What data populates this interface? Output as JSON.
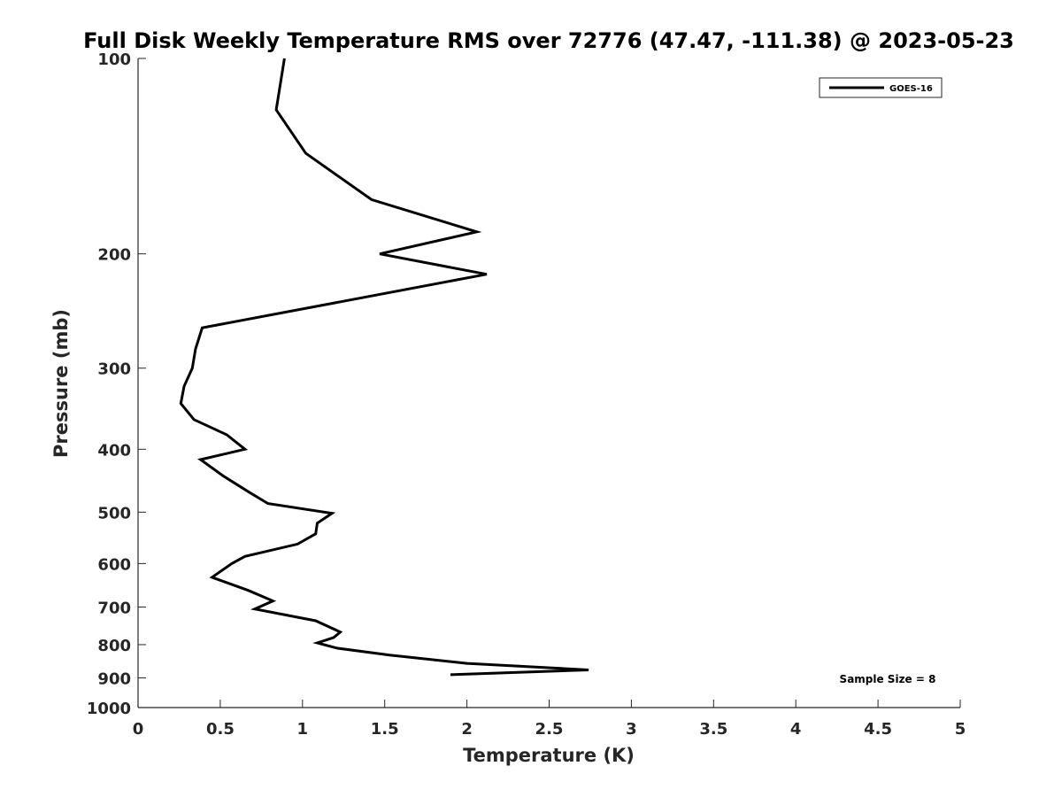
{
  "chart_data": {
    "type": "line",
    "title": "Full Disk Weekly Temperature RMS over 72776 (47.47, -111.38) @ 2023-05-23",
    "xlabel": "Temperature (K)",
    "ylabel": "Pressure (mb)",
    "xlim": [
      0,
      5
    ],
    "ylim": [
      100,
      1000
    ],
    "y_scale": "log",
    "y_reversed": true,
    "grid": false,
    "legend_position": "top-right",
    "x_ticks": [
      "0",
      "0.5",
      "1",
      "1.5",
      "2",
      "2.5",
      "3",
      "3.5",
      "4",
      "4.5",
      "5"
    ],
    "y_ticks": [
      "100",
      "200",
      "300",
      "400",
      "500",
      "600",
      "700",
      "800",
      "900",
      "1000"
    ],
    "series": [
      {
        "name": "GOES-16",
        "color": "#000000",
        "x": [
          0.89,
          0.84,
          1.02,
          1.42,
          2.06,
          1.47,
          2.12,
          0.39,
          0.35,
          0.33,
          0.28,
          0.26,
          0.34,
          0.54,
          0.65,
          0.38,
          0.52,
          0.67,
          0.79,
          1.18,
          1.09,
          1.08,
          0.97,
          0.65,
          0.57,
          0.45,
          0.67,
          0.82,
          0.71,
          1.08,
          1.23,
          1.19,
          1.09,
          1.21,
          1.53,
          2.0,
          2.74,
          1.9
        ],
        "y": [
          100,
          120,
          140,
          165,
          185,
          200,
          215,
          260,
          280,
          300,
          320,
          340,
          360,
          380,
          400,
          415,
          440,
          465,
          485,
          502,
          520,
          540,
          560,
          585,
          600,
          630,
          660,
          685,
          705,
          735,
          765,
          780,
          795,
          810,
          830,
          855,
          875,
          890
        ]
      }
    ],
    "legend": [
      "GOES-16"
    ],
    "annotation": "Sample Size = 8"
  }
}
